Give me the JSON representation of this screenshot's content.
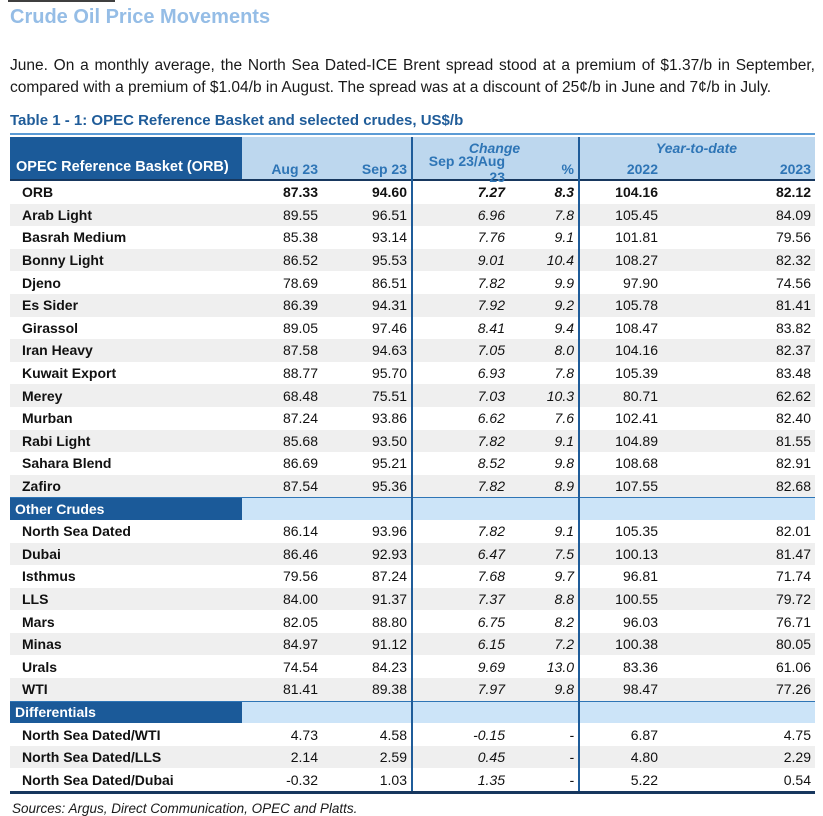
{
  "page": {
    "title": "Crude Oil Price Movements",
    "paragraph": "June. On a monthly average, the North Sea Dated-ICE Brent spread stood at a premium of $1.37/b in September, compared with a premium of $1.04/b in August. The spread was at a discount of 25¢/b in June and 7¢/b in July.",
    "sources": "Sources:  Argus, Direct Communication, OPEC and Platts."
  },
  "table": {
    "title": "Table 1 - 1: OPEC Reference Basket and selected crudes, US$/b",
    "header": {
      "corner": "OPEC Reference Basket (ORB)",
      "group_change": "Change",
      "group_ytd": "Year-to-date",
      "cols": [
        "Aug 23",
        "Sep 23",
        "Sep 23/Aug 23",
        "%",
        "2022",
        "2023"
      ]
    },
    "sections": [
      {
        "name": null,
        "rows": [
          {
            "label": "ORB",
            "aug": "87.33",
            "sep": "94.60",
            "chg": "7.27",
            "pct": "8.3",
            "y2022": "104.16",
            "y2023": "82.12",
            "bold": true
          },
          {
            "label": "Arab Light",
            "aug": "89.55",
            "sep": "96.51",
            "chg": "6.96",
            "pct": "7.8",
            "y2022": "105.45",
            "y2023": "84.09",
            "bold": false
          },
          {
            "label": "Basrah Medium",
            "aug": "85.38",
            "sep": "93.14",
            "chg": "7.76",
            "pct": "9.1",
            "y2022": "101.81",
            "y2023": "79.56",
            "bold": false
          },
          {
            "label": "Bonny Light",
            "aug": "86.52",
            "sep": "95.53",
            "chg": "9.01",
            "pct": "10.4",
            "y2022": "108.27",
            "y2023": "82.32",
            "bold": false
          },
          {
            "label": "Djeno",
            "aug": "78.69",
            "sep": "86.51",
            "chg": "7.82",
            "pct": "9.9",
            "y2022": "97.90",
            "y2023": "74.56",
            "bold": false
          },
          {
            "label": "Es Sider",
            "aug": "86.39",
            "sep": "94.31",
            "chg": "7.92",
            "pct": "9.2",
            "y2022": "105.78",
            "y2023": "81.41",
            "bold": false
          },
          {
            "label": "Girassol",
            "aug": "89.05",
            "sep": "97.46",
            "chg": "8.41",
            "pct": "9.4",
            "y2022": "108.47",
            "y2023": "83.82",
            "bold": false
          },
          {
            "label": "Iran Heavy",
            "aug": "87.58",
            "sep": "94.63",
            "chg": "7.05",
            "pct": "8.0",
            "y2022": "104.16",
            "y2023": "82.37",
            "bold": false
          },
          {
            "label": "Kuwait Export",
            "aug": "88.77",
            "sep": "95.70",
            "chg": "6.93",
            "pct": "7.8",
            "y2022": "105.39",
            "y2023": "83.48",
            "bold": false
          },
          {
            "label": "Merey",
            "aug": "68.48",
            "sep": "75.51",
            "chg": "7.03",
            "pct": "10.3",
            "y2022": "80.71",
            "y2023": "62.62",
            "bold": false
          },
          {
            "label": "Murban",
            "aug": "87.24",
            "sep": "93.86",
            "chg": "6.62",
            "pct": "7.6",
            "y2022": "102.41",
            "y2023": "82.40",
            "bold": false
          },
          {
            "label": "Rabi Light",
            "aug": "85.68",
            "sep": "93.50",
            "chg": "7.82",
            "pct": "9.1",
            "y2022": "104.89",
            "y2023": "81.55",
            "bold": false
          },
          {
            "label": "Sahara Blend",
            "aug": "86.69",
            "sep": "95.21",
            "chg": "8.52",
            "pct": "9.8",
            "y2022": "108.68",
            "y2023": "82.91",
            "bold": false
          },
          {
            "label": "Zafiro",
            "aug": "87.54",
            "sep": "95.36",
            "chg": "7.82",
            "pct": "8.9",
            "y2022": "107.55",
            "y2023": "82.68",
            "bold": false
          }
        ]
      },
      {
        "name": "Other Crudes",
        "rows": [
          {
            "label": "North Sea Dated",
            "aug": "86.14",
            "sep": "93.96",
            "chg": "7.82",
            "pct": "9.1",
            "y2022": "105.35",
            "y2023": "82.01",
            "bold": false
          },
          {
            "label": "Dubai",
            "aug": "86.46",
            "sep": "92.93",
            "chg": "6.47",
            "pct": "7.5",
            "y2022": "100.13",
            "y2023": "81.47",
            "bold": false
          },
          {
            "label": "Isthmus",
            "aug": "79.56",
            "sep": "87.24",
            "chg": "7.68",
            "pct": "9.7",
            "y2022": "96.81",
            "y2023": "71.74",
            "bold": false
          },
          {
            "label": "LLS",
            "aug": "84.00",
            "sep": "91.37",
            "chg": "7.37",
            "pct": "8.8",
            "y2022": "100.55",
            "y2023": "79.72",
            "bold": false
          },
          {
            "label": "Mars",
            "aug": "82.05",
            "sep": "88.80",
            "chg": "6.75",
            "pct": "8.2",
            "y2022": "96.03",
            "y2023": "76.71",
            "bold": false
          },
          {
            "label": "Minas",
            "aug": "84.97",
            "sep": "91.12",
            "chg": "6.15",
            "pct": "7.2",
            "y2022": "100.38",
            "y2023": "80.05",
            "bold": false
          },
          {
            "label": "Urals",
            "aug": "74.54",
            "sep": "84.23",
            "chg": "9.69",
            "pct": "13.0",
            "y2022": "83.36",
            "y2023": "61.06",
            "bold": false
          },
          {
            "label": "WTI",
            "aug": "81.41",
            "sep": "89.38",
            "chg": "7.97",
            "pct": "9.8",
            "y2022": "98.47",
            "y2023": "77.26",
            "bold": false
          }
        ]
      },
      {
        "name": "Differentials",
        "rows": [
          {
            "label": "North Sea Dated/WTI",
            "aug": "4.73",
            "sep": "4.58",
            "chg": "-0.15",
            "pct": "-",
            "y2022": "6.87",
            "y2023": "4.75",
            "bold": false
          },
          {
            "label": "North Sea Dated/LLS",
            "aug": "2.14",
            "sep": "2.59",
            "chg": "0.45",
            "pct": "-",
            "y2022": "4.80",
            "y2023": "2.29",
            "bold": false
          },
          {
            "label": "North Sea Dated/Dubai",
            "aug": "-0.32",
            "sep": "1.03",
            "chg": "1.35",
            "pct": "-",
            "y2022": "5.22",
            "y2023": "0.54",
            "bold": false
          }
        ]
      }
    ]
  },
  "colors": {
    "page_title": "#95BDE6",
    "table_title": "#1F5C99",
    "header_dark_blue": "#1B5A99",
    "header_light_blue": "#BDD7EE",
    "section_light_blue": "#CCE4F8",
    "header_text_blue": "#2E75B6",
    "stripe_gray": "#EFEFEF",
    "divider_blue": "#1F5C99",
    "rule_dark_navy": "#17375E",
    "top_rule_blue": "#5B9BD5"
  }
}
